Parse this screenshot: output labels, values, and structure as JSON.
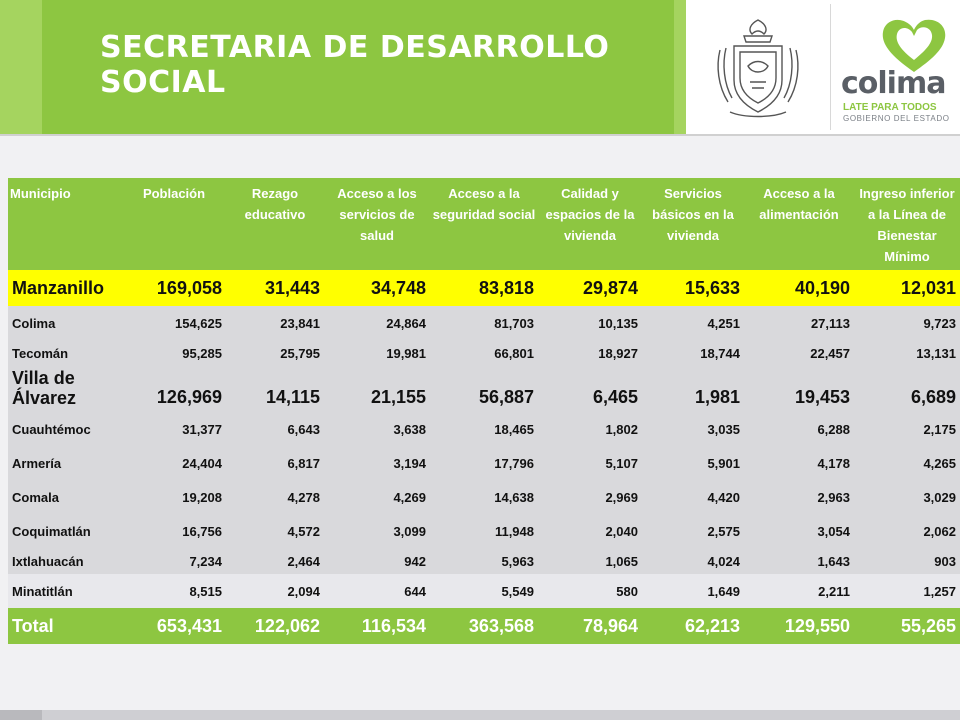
{
  "header": {
    "title": "SECRETARIA DE DESARROLLO SOCIAL",
    "logo": {
      "word": "colima",
      "tagline": "LATE PARA TODOS",
      "subtitle": "GOBIERNO DEL ESTADO"
    },
    "colors": {
      "brand_green": "#8dc641",
      "highlight_yellow": "#ffff00"
    },
    "icons": [
      "state-seal-icon",
      "heart-logo-icon"
    ]
  },
  "table": {
    "columns": [
      "Municipio",
      "Población",
      "Rezago educativo",
      "Acceso a los servicios de salud",
      "Acceso a la seguridad social",
      "Calidad y espacios de la vivienda",
      "Servicios básicos en la vivienda",
      "Acceso a la alimentación",
      "Ingreso inferior a la Línea de Bienestar Mínimo"
    ],
    "rows": [
      [
        "Manzanillo",
        "169,058",
        "31,443",
        "34,748",
        "83,818",
        "29,874",
        "15,633",
        "40,190",
        "12,031"
      ],
      [
        "Colima",
        "154,625",
        "23,841",
        "24,864",
        "81,703",
        "10,135",
        "4,251",
        "27,113",
        "9,723"
      ],
      [
        "Tecomán",
        "95,285",
        "25,795",
        "19,981",
        "66,801",
        "18,927",
        "18,744",
        "22,457",
        "13,131"
      ],
      [
        "Villa de Álvarez",
        "126,969",
        "14,115",
        "21,155",
        "56,887",
        "6,465",
        "1,981",
        "19,453",
        "6,689"
      ],
      [
        "Cuauhtémoc",
        "31,377",
        "6,643",
        "3,638",
        "18,465",
        "1,802",
        "3,035",
        "6,288",
        "2,175"
      ],
      [
        "Armería",
        "24,404",
        "6,817",
        "3,194",
        "17,796",
        "5,107",
        "5,901",
        "4,178",
        "4,265"
      ],
      [
        "Comala",
        "19,208",
        "4,278",
        "4,269",
        "14,638",
        "2,969",
        "4,420",
        "2,963",
        "3,029"
      ],
      [
        "Coquimatlán",
        "16,756",
        "4,572",
        "3,099",
        "11,948",
        "2,040",
        "2,575",
        "3,054",
        "2,062"
      ],
      [
        "Ixtlahuacán",
        "7,234",
        "2,464",
        "942",
        "5,963",
        "1,065",
        "4,024",
        "1,643",
        "903"
      ],
      [
        "Minatitlán",
        "8,515",
        "2,094",
        "644",
        "5,549",
        "580",
        "1,649",
        "2,211",
        "1,257"
      ]
    ],
    "total": [
      "Total",
      "653,431",
      "122,062",
      "116,534",
      "363,568",
      "78,964",
      "62,213",
      "129,550",
      "55,265"
    ]
  }
}
